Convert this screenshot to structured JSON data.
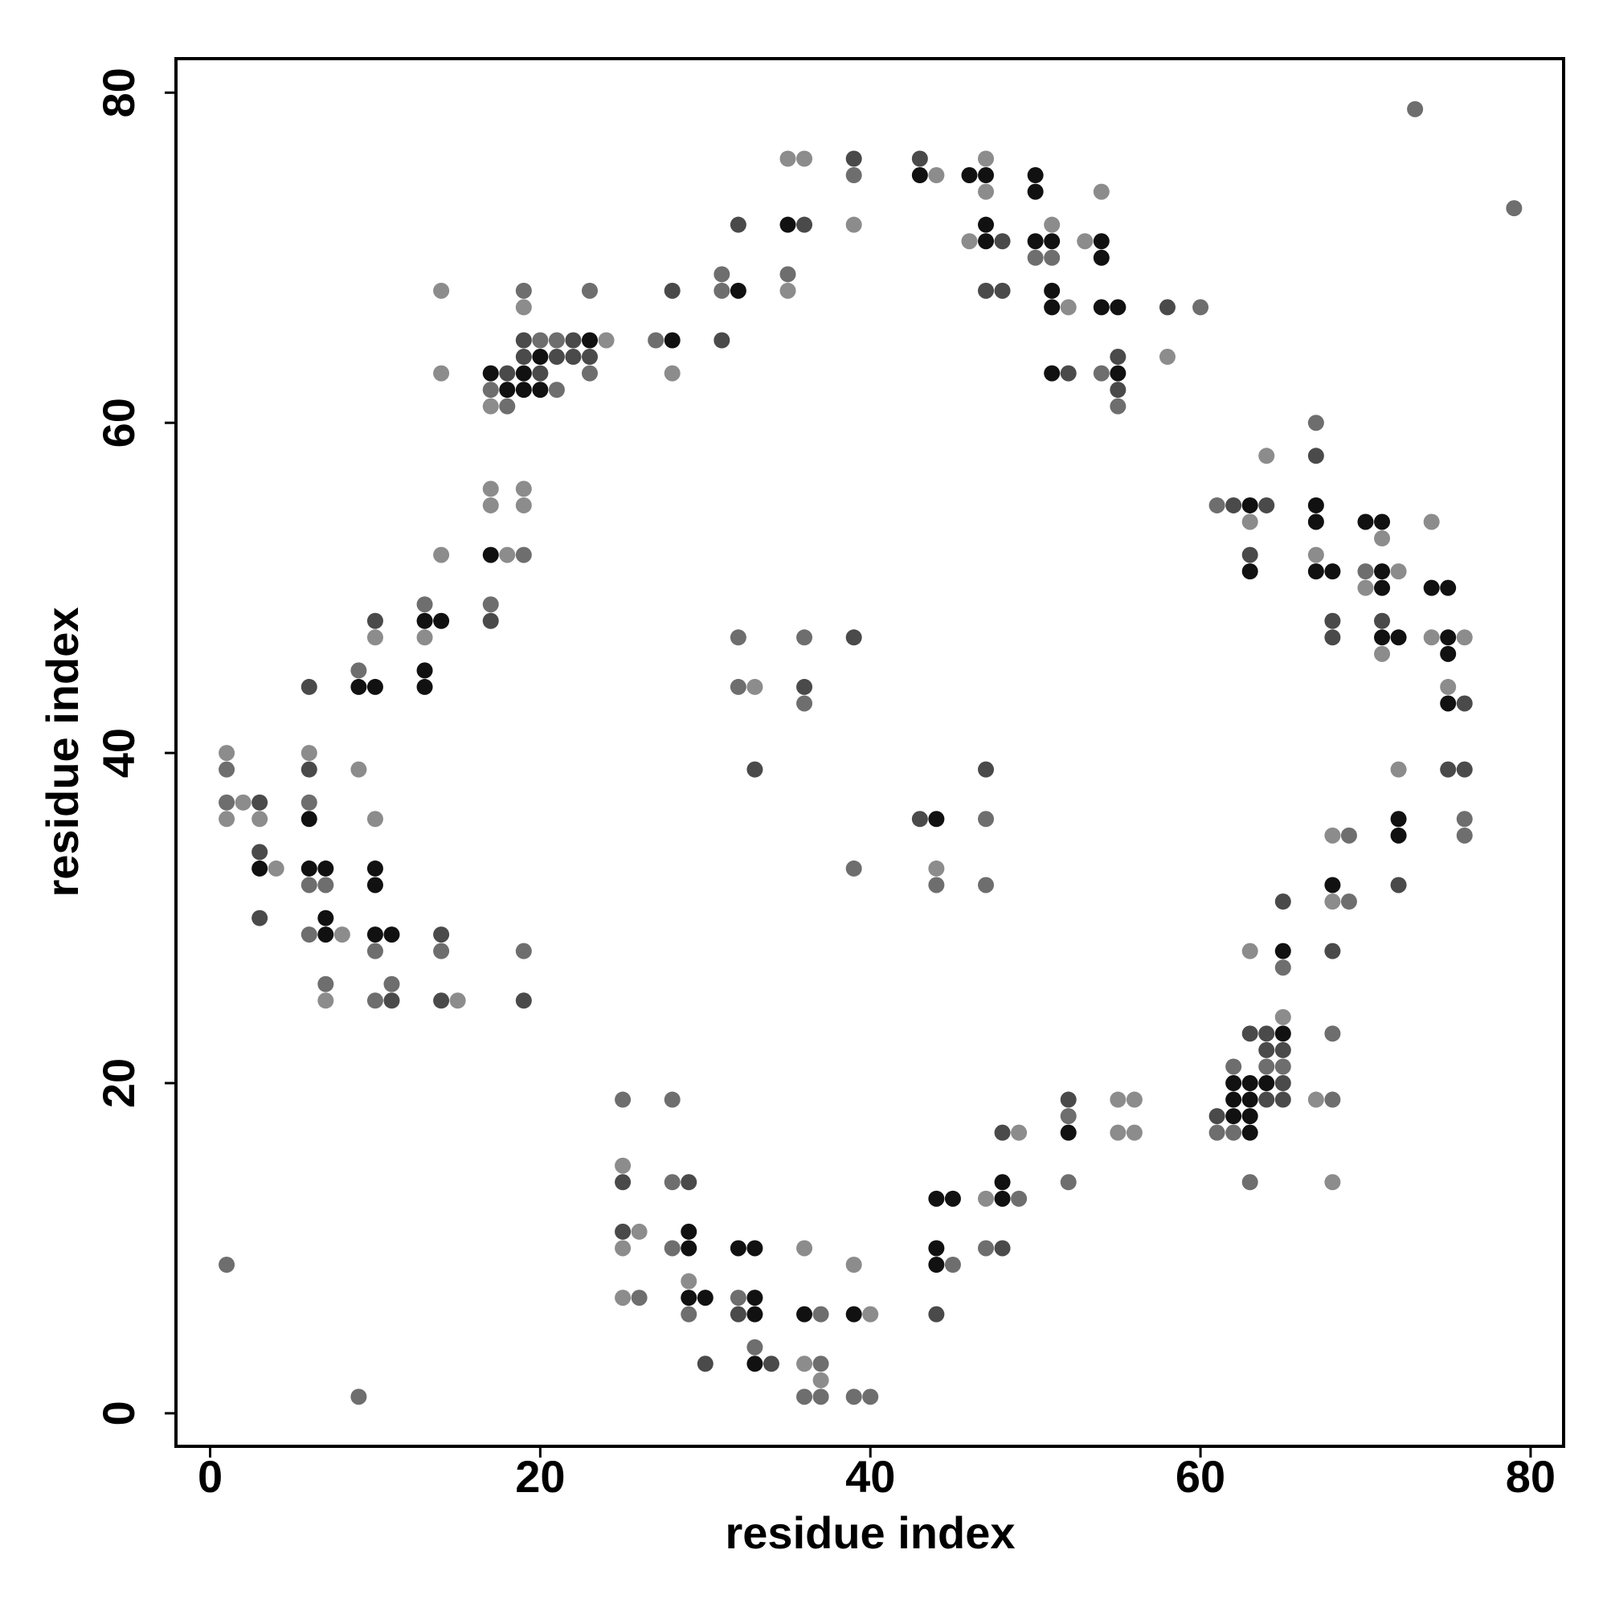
{
  "chart_data": {
    "type": "scatter",
    "xlabel": "residue index",
    "ylabel": "residue index",
    "xlim": [
      -2.07,
      82.0
    ],
    "ylim": [
      -2.0,
      82.06
    ],
    "xticks": [
      0,
      20,
      40,
      60,
      80
    ],
    "yticks": [
      0,
      20,
      40,
      60,
      80
    ],
    "series": [
      {
        "color": "#111111",
        "x": [
          3,
          6,
          6,
          7,
          7,
          7,
          9,
          10,
          10,
          10,
          10,
          11,
          13,
          13,
          13,
          14,
          17,
          17,
          18,
          19,
          19,
          20,
          20,
          23,
          28,
          32,
          35,
          43,
          46,
          47,
          47,
          47,
          50,
          50,
          50,
          51,
          51,
          51,
          51,
          54,
          54,
          54,
          55,
          55,
          63,
          63,
          67,
          67,
          67,
          68,
          70,
          71,
          71,
          71,
          71,
          72,
          74,
          75,
          75,
          75,
          75,
          72,
          72,
          68,
          65,
          65,
          64,
          63,
          63,
          63,
          63,
          62,
          62,
          62,
          52,
          48,
          48,
          44,
          45,
          44,
          44,
          29,
          29,
          29,
          30,
          32,
          33,
          33,
          33,
          33,
          36,
          39,
          44
        ],
        "y": [
          33,
          36,
          33,
          33,
          30,
          29,
          44,
          44,
          33,
          32,
          29,
          29,
          48,
          45,
          44,
          48,
          63,
          52,
          62,
          63,
          62,
          64,
          62,
          65,
          65,
          68,
          72,
          75,
          75,
          75,
          72,
          71,
          75,
          74,
          71,
          71,
          68,
          67,
          63,
          71,
          70,
          67,
          67,
          63,
          55,
          51,
          55,
          54,
          51,
          51,
          54,
          54,
          51,
          50,
          47,
          47,
          50,
          50,
          47,
          46,
          43,
          36,
          35,
          32,
          28,
          23,
          20,
          20,
          19,
          18,
          17,
          20,
          19,
          18,
          17,
          14,
          13,
          13,
          13,
          10,
          9,
          11,
          10,
          7,
          7,
          10,
          10,
          7,
          6,
          3,
          6,
          6,
          36
        ]
      },
      {
        "color": "#4a4a4a",
        "x": [
          3,
          3,
          3,
          6,
          6,
          10,
          11,
          14,
          14,
          17,
          18,
          19,
          19,
          19,
          20,
          21,
          22,
          22,
          23,
          28,
          31,
          32,
          36,
          39,
          43,
          47,
          48,
          48,
          52,
          55,
          55,
          58,
          62,
          63,
          64,
          67,
          68,
          68,
          71,
          75,
          76,
          76,
          72,
          68,
          65,
          65,
          65,
          65,
          64,
          64,
          64,
          63,
          61,
          52,
          48,
          48,
          44,
          43,
          47,
          33,
          36,
          39,
          25,
          25,
          29,
          30,
          32,
          34
        ],
        "y": [
          37,
          34,
          30,
          44,
          39,
          48,
          25,
          29,
          25,
          48,
          63,
          65,
          64,
          25,
          63,
          64,
          65,
          64,
          64,
          68,
          65,
          72,
          72,
          76,
          76,
          68,
          71,
          68,
          63,
          64,
          62,
          67,
          55,
          52,
          55,
          58,
          48,
          47,
          48,
          39,
          43,
          39,
          32,
          28,
          31,
          22,
          20,
          19,
          23,
          22,
          19,
          23,
          18,
          19,
          17,
          10,
          6,
          36,
          39,
          39,
          44,
          47,
          14,
          11,
          14,
          3,
          6,
          3
        ]
      },
      {
        "color": "#6e6e6e",
        "x": [
          1,
          9,
          1,
          1,
          6,
          6,
          6,
          7,
          7,
          9,
          10,
          10,
          11,
          13,
          14,
          17,
          17,
          18,
          19,
          19,
          19,
          20,
          21,
          21,
          23,
          23,
          27,
          31,
          31,
          35,
          39,
          50,
          51,
          54,
          55,
          60,
          73,
          79,
          61,
          67,
          70,
          76,
          76,
          68,
          68,
          69,
          69,
          65,
          65,
          64,
          63,
          62,
          62,
          61,
          52,
          52,
          49,
          47,
          45,
          44,
          47,
          47,
          32,
          32,
          36,
          36,
          39,
          25,
          26,
          28,
          28,
          28,
          29,
          32,
          33,
          36,
          37,
          37,
          37,
          39,
          40
        ],
        "y": [
          9,
          1,
          39,
          37,
          37,
          32,
          29,
          32,
          26,
          45,
          28,
          25,
          26,
          49,
          28,
          62,
          49,
          61,
          68,
          52,
          28,
          65,
          65,
          62,
          68,
          63,
          65,
          69,
          68,
          69,
          75,
          70,
          70,
          63,
          61,
          67,
          79,
          73,
          55,
          60,
          51,
          36,
          35,
          23,
          19,
          35,
          31,
          27,
          21,
          21,
          14,
          21,
          17,
          17,
          18,
          14,
          13,
          10,
          9,
          32,
          36,
          32,
          47,
          44,
          47,
          43,
          33,
          19,
          7,
          19,
          14,
          10,
          6,
          7,
          4,
          1,
          6,
          3,
          1,
          1,
          1
        ]
      },
      {
        "color": "#8c8c8c",
        "x": [
          1,
          1,
          2,
          3,
          4,
          6,
          7,
          8,
          9,
          10,
          10,
          13,
          14,
          14,
          14,
          15,
          17,
          17,
          17,
          18,
          19,
          19,
          19,
          24,
          28,
          35,
          35,
          36,
          39,
          44,
          46,
          47,
          47,
          51,
          52,
          53,
          54,
          58,
          63,
          64,
          67,
          70,
          71,
          71,
          72,
          74,
          74,
          75,
          76,
          72,
          68,
          68,
          68,
          67,
          65,
          63,
          55,
          55,
          56,
          56,
          49,
          47,
          44,
          33,
          25,
          25,
          25,
          26,
          29,
          36,
          36,
          37,
          39,
          40
        ],
        "y": [
          40,
          36,
          37,
          36,
          33,
          40,
          25,
          29,
          39,
          47,
          36,
          47,
          68,
          63,
          52,
          25,
          61,
          56,
          55,
          52,
          67,
          56,
          55,
          65,
          63,
          76,
          68,
          76,
          72,
          75,
          71,
          76,
          74,
          72,
          67,
          71,
          74,
          64,
          54,
          58,
          52,
          50,
          53,
          46,
          51,
          54,
          47,
          44,
          47,
          39,
          35,
          31,
          14,
          19,
          24,
          28,
          19,
          17,
          19,
          17,
          17,
          13,
          33,
          44,
          15,
          10,
          7,
          11,
          8,
          10,
          3,
          2,
          9,
          6
        ]
      }
    ]
  }
}
